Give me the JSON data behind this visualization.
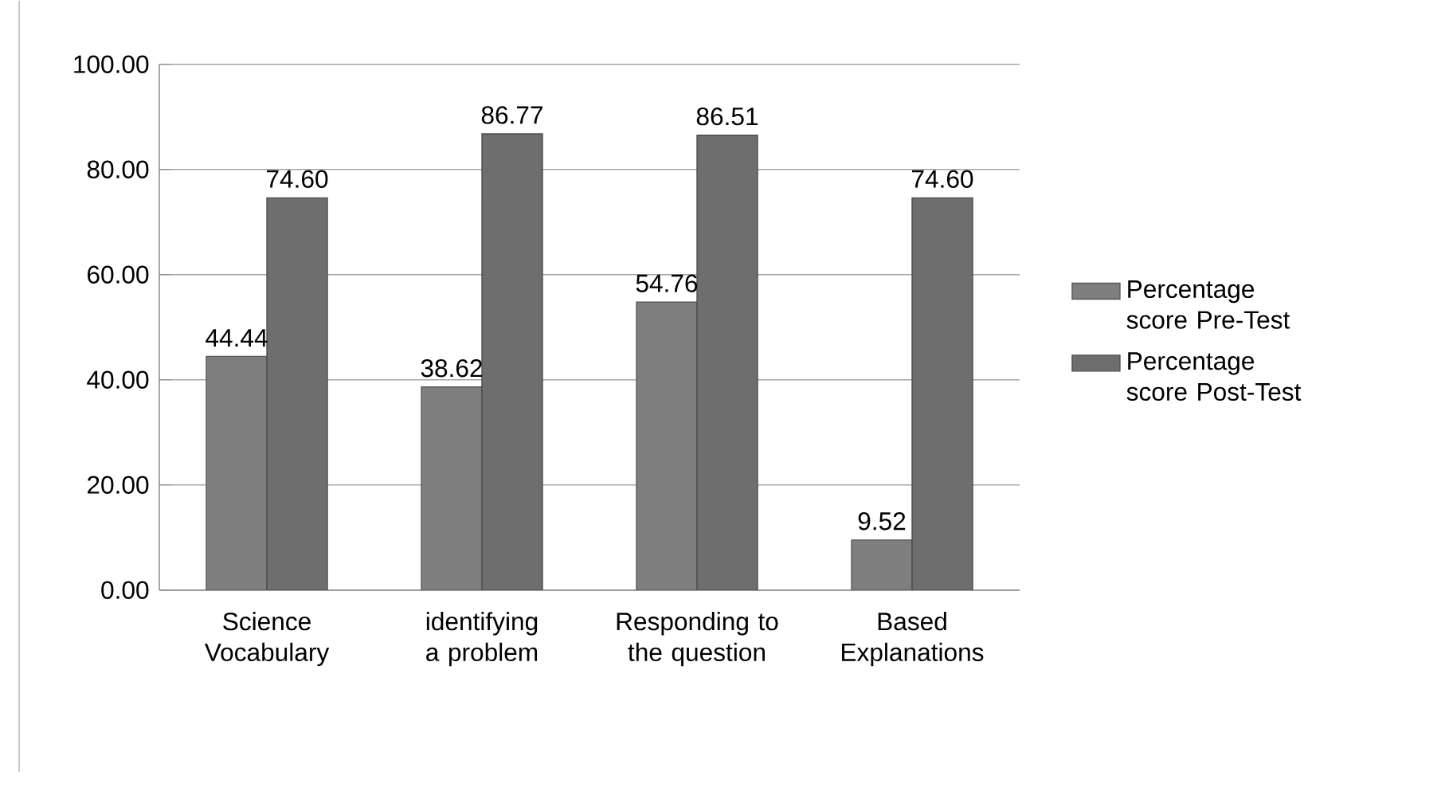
{
  "chart_data": {
    "type": "bar",
    "categories": [
      "Science Vocabulary",
      "identifying a problem",
      "Responding to the question",
      "Based Explanations"
    ],
    "series": [
      {
        "name": "Percentage score Pre-Test",
        "color": "#7f7f7f",
        "values": [
          44.44,
          38.62,
          54.76,
          9.52
        ],
        "value_labels": [
          "44.44",
          "38.62",
          "54.76",
          "9.52"
        ]
      },
      {
        "name": "Percentage score Post-Test",
        "color": "#6e6e6e",
        "values": [
          74.6,
          86.77,
          86.51,
          74.6
        ],
        "value_labels": [
          "74.60",
          "86.77",
          "86.51",
          "74.60"
        ]
      }
    ],
    "ylim": [
      0,
      100
    ],
    "yticks": [
      {
        "value": 0,
        "label": "0.00"
      },
      {
        "value": 20,
        "label": "20.00"
      },
      {
        "value": 40,
        "label": "40.00"
      },
      {
        "value": 60,
        "label": "60.00"
      },
      {
        "value": 80,
        "label": "80.00"
      },
      {
        "value": 100,
        "label": "100.00"
      }
    ],
    "grid": "y",
    "legend": "right"
  }
}
